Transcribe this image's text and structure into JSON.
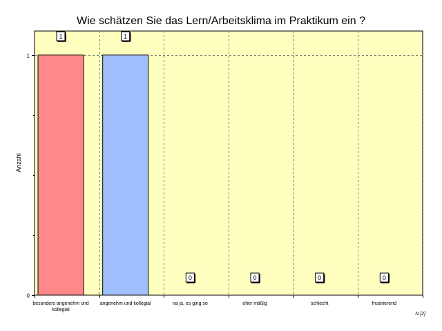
{
  "chart_data": {
    "type": "bar",
    "title": "Wie schätzen Sie das Lern/Arbeitsklima im Praktikum ein ?",
    "ylabel": "Anzahl",
    "xlabel": "",
    "categories": [
      [
        "besonders angenehm und",
        "kollegial"
      ],
      [
        "angenehm und kollegial"
      ],
      [
        "na ja, es ging so"
      ],
      [
        "eher mäßig"
      ],
      [
        "schlecht"
      ],
      [
        "frustrierend"
      ]
    ],
    "values": [
      1,
      1,
      0,
      0,
      0,
      0
    ],
    "data_labels": [
      "1",
      "1",
      "0",
      "0",
      "0",
      "0"
    ],
    "ylim": [
      0,
      1.1
    ],
    "yticks": [
      0,
      1
    ],
    "ytick_labels": [
      "0",
      "1"
    ],
    "grid": "dashed",
    "background_color": "#ffffc0",
    "bar_colors": [
      "#ff8888",
      "#a0bfff",
      "#ffffc0",
      "#ffffc0",
      "#ffffc0",
      "#ffffc0"
    ],
    "footnote": "N [2]"
  }
}
